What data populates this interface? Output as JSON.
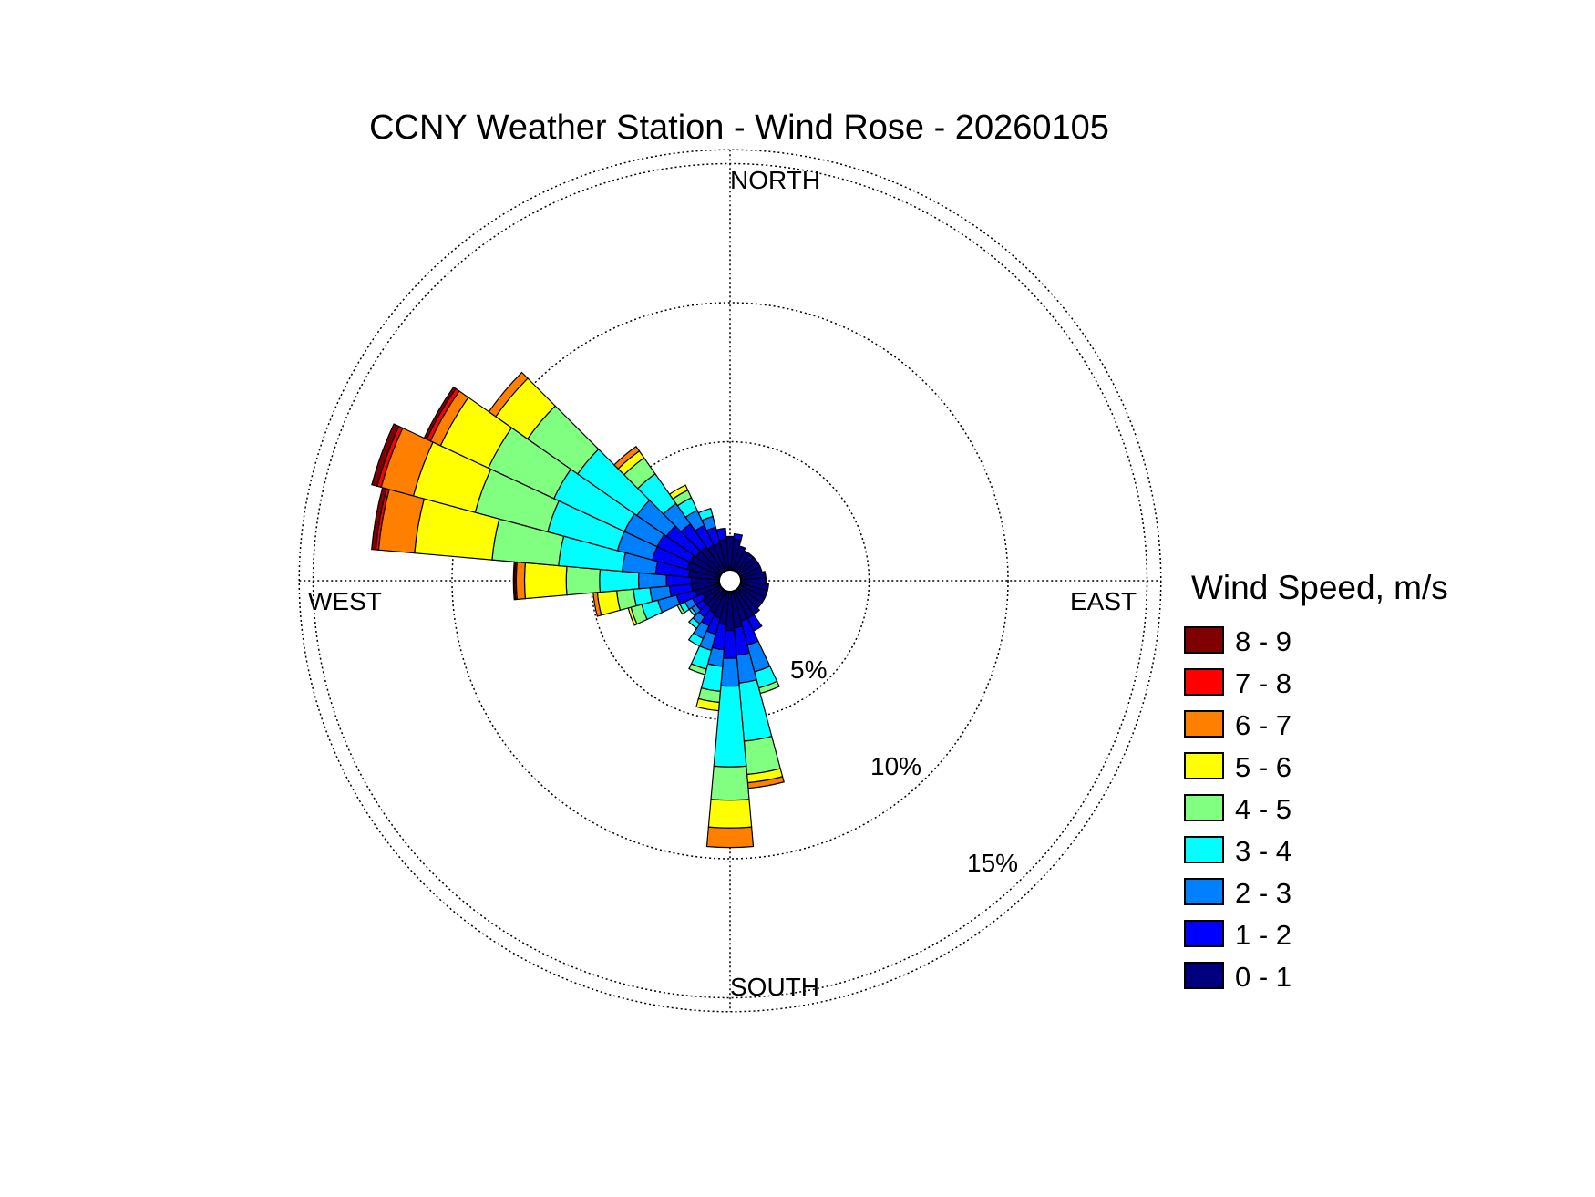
{
  "chart_data": {
    "type": "wind-rose",
    "title": "CCNY Weather Station - Wind Rose - 20260105",
    "directions": {
      "north": "NORTH",
      "south": "SOUTH",
      "east": "EAST",
      "west": "WEST"
    },
    "radial_ticks": [
      {
        "value": 5,
        "label": "5%"
      },
      {
        "value": 10,
        "label": "10%"
      },
      {
        "value": 15,
        "label": "15%"
      }
    ],
    "radial_max": 15.5,
    "grid": true,
    "legend": {
      "title": "Wind Speed, m/s",
      "placement": "right",
      "bins": [
        {
          "label": "0 - 1",
          "color": "#00007f"
        },
        {
          "label": "1 - 2",
          "color": "#0000ff"
        },
        {
          "label": "2 - 3",
          "color": "#0080ff"
        },
        {
          "label": "3 - 4",
          "color": "#00ffff"
        },
        {
          "label": "4 - 5",
          "color": "#80ff80"
        },
        {
          "label": "5 - 6",
          "color": "#ffff00"
        },
        {
          "label": "6 - 7",
          "color": "#ff8000"
        },
        {
          "label": "7 - 8",
          "color": "#ff0000"
        },
        {
          "label": "8 - 9",
          "color": "#7f0000"
        }
      ]
    },
    "sector_width_deg": 10,
    "sectors": [
      {
        "dir": 0,
        "values": [
          1.2
        ]
      },
      {
        "dir": 10,
        "values": [
          1.1,
          0.2
        ]
      },
      {
        "dir": 20,
        "values": [
          0.9
        ]
      },
      {
        "dir": 30,
        "values": [
          0.8
        ]
      },
      {
        "dir": 40,
        "values": [
          0.8
        ]
      },
      {
        "dir": 50,
        "values": [
          0.8
        ]
      },
      {
        "dir": 60,
        "values": [
          0.8
        ]
      },
      {
        "dir": 70,
        "values": [
          0.8
        ]
      },
      {
        "dir": 80,
        "values": [
          0.9
        ]
      },
      {
        "dir": 90,
        "values": [
          0.9
        ]
      },
      {
        "dir": 100,
        "values": [
          1.0
        ]
      },
      {
        "dir": 110,
        "values": [
          1.0
        ]
      },
      {
        "dir": 120,
        "values": [
          1.0
        ]
      },
      {
        "dir": 130,
        "values": [
          1.0
        ]
      },
      {
        "dir": 140,
        "values": [
          1.1
        ]
      },
      {
        "dir": 150,
        "values": [
          1.1,
          0.5
        ]
      },
      {
        "dir": 160,
        "values": [
          1.1,
          0.9,
          1.0,
          0.6,
          0.2
        ]
      },
      {
        "dir": 170,
        "values": [
          1.3,
          1.0,
          1.0,
          2.1,
          1.2,
          0.3,
          0.2
        ]
      },
      {
        "dir": 180,
        "values": [
          1.4,
          1.0,
          1.0,
          2.9,
          1.2,
          1.0,
          0.7
        ]
      },
      {
        "dir": 190,
        "values": [
          1.2,
          0.9,
          0.6,
          0.9,
          0.4,
          0.3
        ]
      },
      {
        "dir": 200,
        "values": [
          1.0,
          0.6,
          0.6,
          0.7,
          0.2
        ]
      },
      {
        "dir": 210,
        "values": [
          0.9,
          0.5,
          0.5,
          0.3
        ]
      },
      {
        "dir": 220,
        "values": [
          0.8,
          0.4,
          0.3,
          0.2
        ]
      },
      {
        "dir": 230,
        "values": [
          0.8,
          0.3,
          0.2,
          0.1
        ]
      },
      {
        "dir": 240,
        "values": [
          0.7,
          0.4,
          0.3,
          0.2,
          0.1
        ]
      },
      {
        "dir": 250,
        "values": [
          0.9,
          0.7,
          0.7,
          0.6,
          0.4,
          0.1
        ]
      },
      {
        "dir": 260,
        "values": [
          1.0,
          0.8,
          0.7,
          0.6,
          0.6,
          0.7,
          0.15
        ]
      },
      {
        "dir": 270,
        "values": [
          1.0,
          0.9,
          1.0,
          1.4,
          1.2,
          1.5,
          0.3,
          0.05,
          0.05
        ]
      },
      {
        "dir": 280,
        "values": [
          1.1,
          1.2,
          1.2,
          2.3,
          2.4,
          2.8,
          1.3,
          0.1,
          0.15
        ]
      },
      {
        "dir": 290,
        "values": [
          1.2,
          1.3,
          1.3,
          2.6,
          2.7,
          2.3,
          1.2,
          0.15,
          0.2
        ]
      },
      {
        "dir": 300,
        "values": [
          1.2,
          1.3,
          1.3,
          2.8,
          2.6,
          1.9,
          0.4,
          0.15,
          0.1
        ]
      },
      {
        "dir": 310,
        "values": [
          1.1,
          1.3,
          1.3,
          2.6,
          2.2,
          1.4,
          0.3
        ]
      },
      {
        "dir": 320,
        "values": [
          1.1,
          1.0,
          0.9,
          1.3,
          0.7,
          0.3,
          0.2
        ]
      },
      {
        "dir": 330,
        "values": [
          1.0,
          0.8,
          0.6,
          0.5,
          0.3,
          0.2
        ]
      },
      {
        "dir": 340,
        "values": [
          1.0,
          0.6,
          0.4,
          0.3
        ]
      },
      {
        "dir": 350,
        "values": [
          1.1,
          0.4
        ]
      }
    ]
  }
}
